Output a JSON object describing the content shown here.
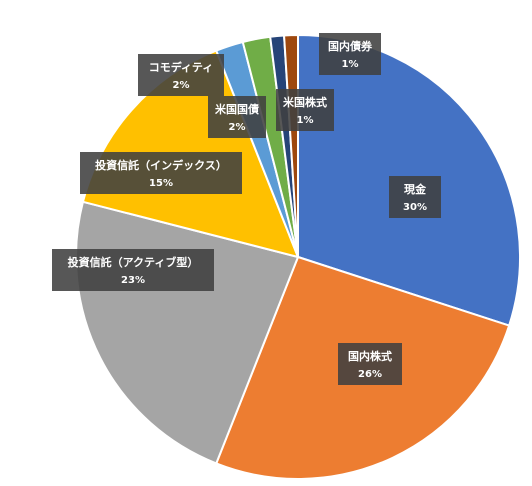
{
  "chart_data": {
    "type": "pie",
    "start_angle_deg": 0,
    "direction": "clockwise",
    "show_legend": false,
    "data_labels": "category-and-percent",
    "slices": [
      {
        "label": "現金",
        "value": 30,
        "pct_label": "30%",
        "color": "#4472C4"
      },
      {
        "label": "国内株式",
        "value": 26,
        "pct_label": "26%",
        "color": "#ED7D31"
      },
      {
        "label": "投資信託（アクティブ型）",
        "value": 23,
        "pct_label": "23%",
        "color": "#A5A5A5"
      },
      {
        "label": "投資信託（インデックス）",
        "value": 15,
        "pct_label": "15%",
        "color": "#FFC000"
      },
      {
        "label": "コモディティ",
        "value": 2,
        "pct_label": "2%",
        "color": "#5B9BD5"
      },
      {
        "label": "米国国債",
        "value": 2,
        "pct_label": "2%",
        "color": "#70AD47"
      },
      {
        "label": "米国株式",
        "value": 1,
        "pct_label": "1%",
        "color": "#264478"
      },
      {
        "label": "国内債券",
        "value": 1,
        "pct_label": "1%",
        "color": "#9E480E"
      }
    ]
  }
}
